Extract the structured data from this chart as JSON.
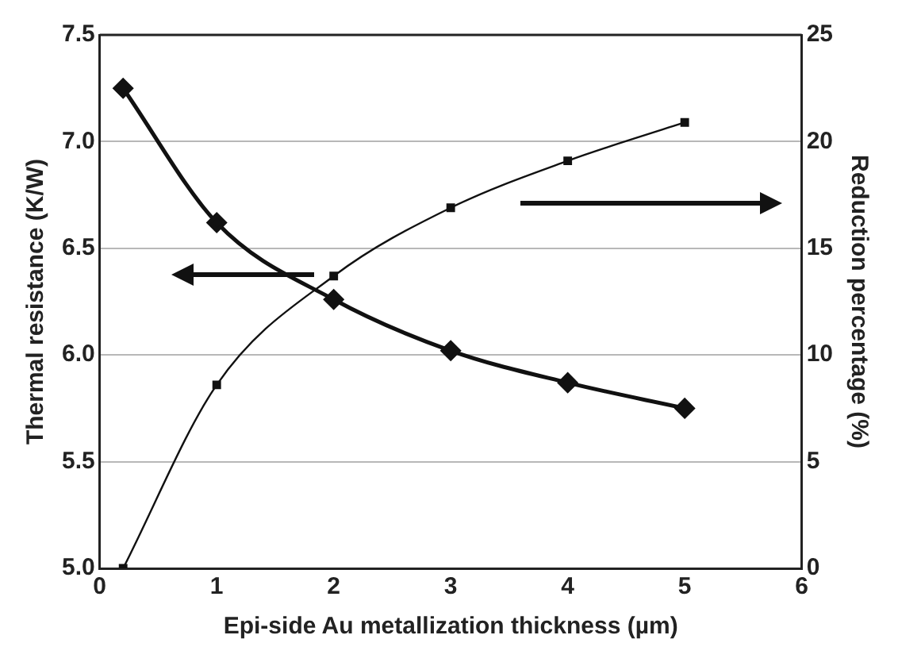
{
  "chart_data": {
    "type": "line",
    "xlabel": "Epi-side Au metallization thickness (µm)",
    "ylabel": "Thermal resistance (K/W)",
    "y2label": "Reduction percentage (%)",
    "x": [
      0.2,
      1,
      2,
      3,
      4,
      5
    ],
    "series": [
      {
        "color": "#111111",
        "values": [
          7.25,
          6.62,
          6.26,
          6.02,
          5.87,
          5.75
        ],
        "marker": "diamond"
      },
      {
        "color": "#111111",
        "values": [
          0,
          8.6,
          13.7,
          16.9,
          19.1,
          20.9
        ],
        "axis": "y2",
        "marker": "square"
      }
    ],
    "xlim": [
      0,
      6
    ],
    "xticks": [
      0,
      1,
      2,
      3,
      4,
      5,
      6
    ],
    "ylim": [
      5,
      7.5
    ],
    "yticks": [
      {
        "value": 5,
        "label": "5.0"
      },
      {
        "value": 5.5,
        "label": "5.5"
      },
      {
        "value": 6,
        "label": "6.0"
      },
      {
        "value": 6.5,
        "label": "6.5"
      },
      {
        "value": 7,
        "label": "7.0"
      },
      {
        "value": 7.5,
        "label": "7.5"
      }
    ],
    "y2lim": [
      0,
      25
    ],
    "y2ticks": [
      0,
      5,
      10,
      15,
      20,
      25
    ],
    "grid": "y",
    "legend": false
  }
}
